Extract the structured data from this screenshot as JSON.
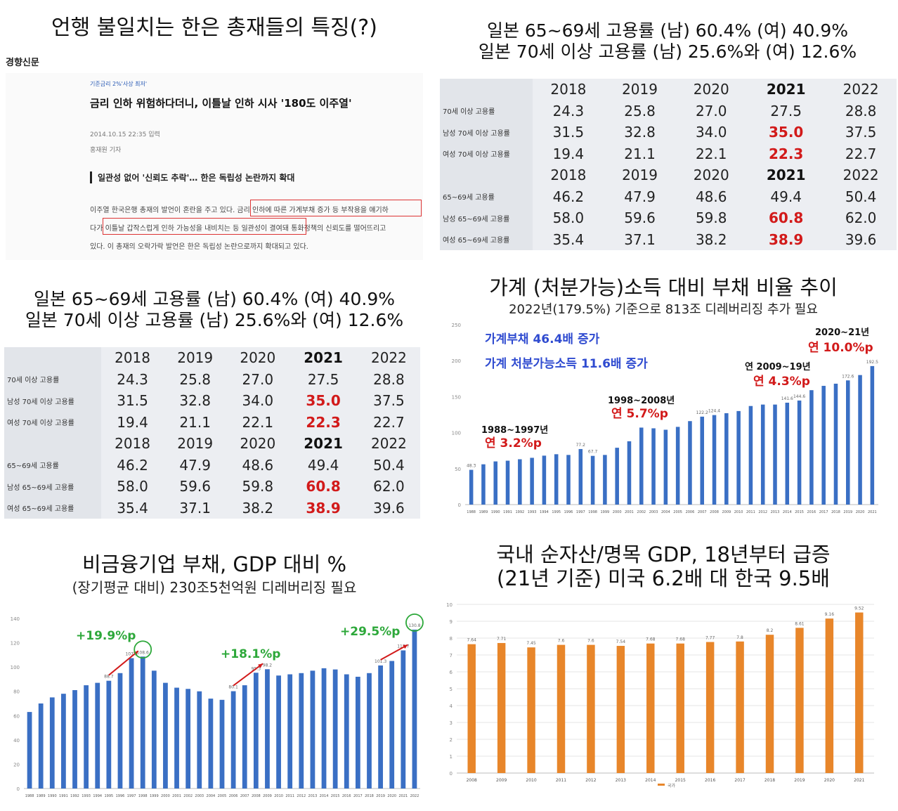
{
  "panel1": {
    "title": "언행 불일치는 한은 총재들의 특징(?)",
    "paper": "경향신문",
    "kicker": "기준금리 2%'사상 최저'",
    "headline": "금리 인하 위험하다더니, 이틀날 인하 시사 '180도 이주열'",
    "date": "2014.10.15 22:35 입력",
    "reporter": "홍재원 기자",
    "subhead": "일관성 없어 '신뢰도 추락'… 한은 독립성 논란까지 확대",
    "body": [
      "이주열 한국은행 총재의 발언이 혼란을 주고 있다. 금리 인하에 따른 가계부채 증가 등 부작용을 얘기하",
      "다가 이틀날 갑작스럽게 인하 가능성을 내비치는 등 일관성이 결여돼 통화정책의 신뢰도를 떨어뜨리고",
      "있다. 이 총재의 오락가락 발언은 한은 독립성 논란으로까지 확대되고 있다."
    ]
  },
  "panel2": {
    "title1": "일본 65~69세 고용률 (남) 60.4% (여) 40.9%",
    "title2": "일본 70세 이상 고용률 (남) 25.6%와 (여) 12.6%"
  },
  "panel3": {
    "title1": "일본 65~69세 고용률 (남) 60.4% (여) 40.9%",
    "title2": "일본 70세 이상 고용률 (남) 25.6%와 (여) 12.6%"
  },
  "panel4": {
    "title": "가계 (처분가능)소득 대비 부채 비율 추이",
    "subtitle": "2022년(179.5%) 기준으로 813조 디레버리징 추가 필요",
    "note1": "가계부채 46.4배 증가",
    "note2": "가계 처분가능소득 11.6배 증가",
    "periods": [
      {
        "label": "1988~1997년",
        "rate": "연 3.2%p"
      },
      {
        "label": "1998~2008년",
        "rate": "연 5.7%p"
      },
      {
        "label": "연 2009~19년",
        "rate": "연 4.3%p"
      },
      {
        "label": "2020~21년",
        "rate": "연 10.0%p"
      }
    ]
  },
  "panel5": {
    "title": "비금융기업 부채, GDP 대비 %",
    "subtitle": "(장기평균 대비) 230조5천억원 디레버리징 필요",
    "ann1": "+19.9%p",
    "ann2": "+18.1%p",
    "ann3": "+29.5%p"
  },
  "panel6": {
    "title1": "국내 순자산/명목 GDP, 18년부터 급증",
    "title2": "(21년 기준) 미국 6.2배 대 한국 9.5배"
  },
  "chart_data": [
    {
      "type": "table",
      "title": "일본 고용률",
      "groups": [
        {
          "years": [
            "2018",
            "2019",
            "2020",
            "2021",
            "2022"
          ],
          "rows": [
            {
              "label": "70세 이상 고용률",
              "values": [
                "24.3",
                "25.8",
                "27.0",
                "27.5",
                "28.8"
              ]
            },
            {
              "label": "남성 70세 이상 고용률",
              "values": [
                "31.5",
                "32.8",
                "34.0",
                "35.0",
                "37.5"
              ]
            },
            {
              "label": "여성 70세 이상 고용률",
              "values": [
                "19.4",
                "21.1",
                "22.1",
                "22.3",
                "22.7"
              ]
            }
          ]
        },
        {
          "years": [
            "2018",
            "2019",
            "2020",
            "2021",
            "2022"
          ],
          "rows": [
            {
              "label": "65~69세 고용률",
              "values": [
                "46.2",
                "47.9",
                "48.6",
                "49.4",
                "50.4"
              ]
            },
            {
              "label": "남성 65~69세 고용률",
              "values": [
                "58.0",
                "59.6",
                "59.8",
                "60.8",
                "62.0"
              ]
            },
            {
              "label": "여성 65~69세 고용률",
              "values": [
                "35.4",
                "37.1",
                "38.2",
                "38.9",
                "39.6"
              ]
            }
          ]
        }
      ],
      "highlight_color": "#d21a1a"
    },
    {
      "type": "bar",
      "title": "가계 (처분가능)소득 대비 부채 비율 추이",
      "categories": [
        "1988",
        "1989",
        "1990",
        "1991",
        "1992",
        "1993",
        "1994",
        "1995",
        "1996",
        "1997",
        "1998",
        "1999",
        "2000",
        "2001",
        "2002",
        "2003",
        "2004",
        "2005",
        "2006",
        "2007",
        "2008",
        "2009",
        "2010",
        "2011",
        "2012",
        "2013",
        "2014",
        "2015",
        "2016",
        "2017",
        "2018",
        "2019",
        "2020",
        "2021"
      ],
      "values": [
        48.3,
        56,
        60,
        61,
        63,
        65,
        68,
        70,
        69,
        77.2,
        67.7,
        69,
        79,
        88,
        107,
        106,
        104,
        108,
        116,
        122.2,
        124.4,
        127,
        130,
        137,
        139,
        139,
        141.6,
        144.6,
        159,
        165,
        168,
        172.6,
        180,
        192.5
      ],
      "labels": [
        "48.3",
        "",
        "",
        "",
        "",
        "",
        "",
        "",
        "",
        "77.2",
        "67.7",
        "",
        "",
        "",
        "",
        "",
        "",
        "",
        "",
        "122.2",
        "124.4",
        "",
        "",
        "",
        "",
        "",
        "141.6",
        "144.6",
        "",
        "",
        "",
        "172.6",
        "",
        "192.5"
      ],
      "yticks": [
        0,
        50,
        100,
        150,
        200,
        250
      ],
      "ylim": [
        0,
        250
      ],
      "color": "#3a6fc4"
    },
    {
      "type": "bar",
      "title": "비금융기업 부채, GDP 대비 %",
      "categories": [
        "1988",
        "1989",
        "1990",
        "1991",
        "1992",
        "1993",
        "1994",
        "1995",
        "1996",
        "1997",
        "1998",
        "1999",
        "2000",
        "2001",
        "2002",
        "2003",
        "2004",
        "2005",
        "2006",
        "2007",
        "2008",
        "2009",
        "2010",
        "2011",
        "2012",
        "2013",
        "2014",
        "2015",
        "2016",
        "2017",
        "2018",
        "2019",
        "2020",
        "2021",
        "2022"
      ],
      "values": [
        63,
        70,
        75,
        78,
        81,
        85,
        87,
        88.7,
        95,
        107.3,
        108.6,
        97,
        87,
        83,
        82,
        80,
        74,
        73,
        80.1,
        85,
        95.3,
        98.2,
        93,
        94,
        95,
        97,
        99,
        98,
        94,
        92,
        95,
        101.3,
        105,
        113.7,
        130.8
      ],
      "labels": [
        "",
        "",
        "",
        "",
        "",
        "",
        "",
        "88.7",
        "",
        "107.3",
        "108.6",
        "",
        "",
        "",
        "",
        "",
        "",
        "",
        "80.1",
        "",
        "95.3",
        "98.2",
        "",
        "",
        "",
        "",
        "",
        "",
        "",
        "",
        "",
        "101.3",
        "",
        "113.7",
        "130.8"
      ],
      "yticks": [
        0,
        20,
        40,
        60,
        80,
        100,
        120,
        140
      ],
      "ylim": [
        0,
        140
      ],
      "color": "#3a6fc4"
    },
    {
      "type": "bar",
      "title": "국내 순자산/명목 GDP",
      "categories": [
        "2008",
        "2009",
        "2010",
        "2011",
        "2012",
        "2013",
        "2014",
        "2015",
        "2016",
        "2017",
        "2018",
        "2019",
        "2020",
        "2021"
      ],
      "values": [
        7.64,
        7.71,
        7.45,
        7.6,
        7.6,
        7.54,
        7.68,
        7.68,
        7.77,
        7.8,
        8.2,
        8.61,
        9.16,
        9.52
      ],
      "labels": [
        "7.64",
        "7.71",
        "7.45",
        "7.6",
        "7.6",
        "7.54",
        "7.68",
        "7.68",
        "7.77",
        "7.8",
        "8.2",
        "8.61",
        "9.16",
        "9.52"
      ],
      "series_name": "국가",
      "yticks": [
        0,
        1,
        2,
        3,
        4,
        5,
        6,
        7,
        8,
        9,
        10
      ],
      "ylim": [
        0,
        10
      ],
      "color": "#e8862a"
    }
  ]
}
